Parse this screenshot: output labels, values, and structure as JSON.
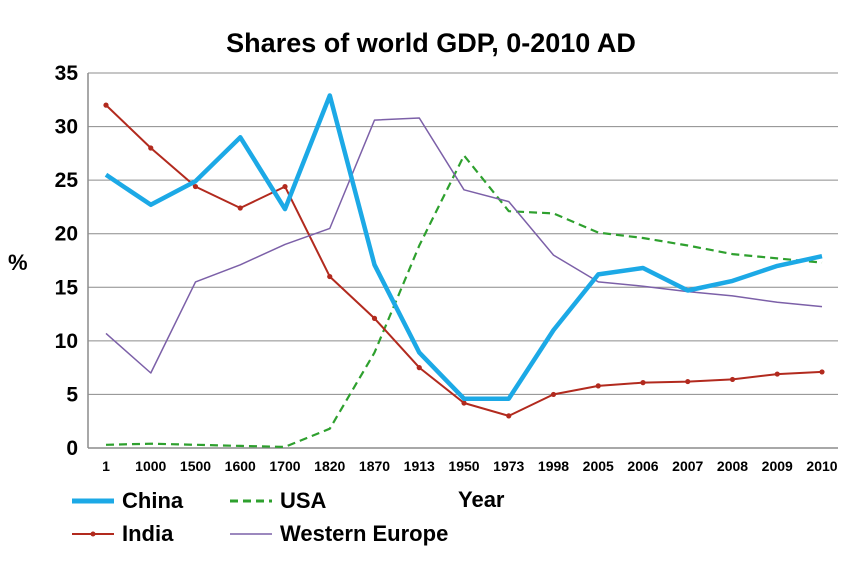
{
  "chart_data": {
    "type": "line",
    "title": "Shares of world GDP, 0-2010 AD",
    "xlabel": "Year",
    "ylabel": "%",
    "ylim": [
      0,
      35
    ],
    "yticks": [
      "0",
      "5",
      "10",
      "15",
      "20",
      "25",
      "30",
      "35"
    ],
    "grid": true,
    "legend_position": "bottom-left",
    "categories": [
      "1",
      "1000",
      "1500",
      "1600",
      "1700",
      "1820",
      "1870",
      "1913",
      "1950",
      "1973",
      "1998",
      "2005",
      "2006",
      "2007",
      "2008",
      "2009",
      "2010"
    ],
    "series": [
      {
        "name": "China",
        "color": "#1CA9E6",
        "style": "solid-thick",
        "values": [
          25.5,
          22.7,
          24.9,
          29.0,
          22.3,
          32.9,
          17.1,
          8.9,
          4.6,
          4.6,
          11.0,
          16.2,
          16.8,
          14.7,
          15.6,
          17.0,
          17.9
        ]
      },
      {
        "name": "USA",
        "color": "#2EA02E",
        "style": "dashed",
        "values": [
          0.3,
          0.4,
          0.3,
          0.2,
          0.1,
          1.8,
          8.9,
          18.9,
          27.3,
          22.1,
          21.9,
          20.1,
          19.6,
          18.9,
          18.1,
          17.7,
          17.3
        ]
      },
      {
        "name": "India",
        "color": "#B22A1E",
        "style": "solid-markers",
        "values": [
          32.0,
          28.0,
          24.4,
          22.4,
          24.4,
          16.0,
          12.1,
          7.5,
          4.2,
          3.0,
          5.0,
          5.8,
          6.1,
          6.2,
          6.4,
          6.9,
          7.1
        ]
      },
      {
        "name": "Western Europe",
        "color": "#7C60A8",
        "style": "solid-thin",
        "values": [
          10.7,
          7.0,
          15.5,
          17.1,
          19.0,
          20.5,
          30.6,
          30.8,
          24.1,
          23.0,
          18.0,
          15.5,
          15.1,
          14.6,
          14.2,
          13.6,
          13.2
        ]
      }
    ]
  }
}
